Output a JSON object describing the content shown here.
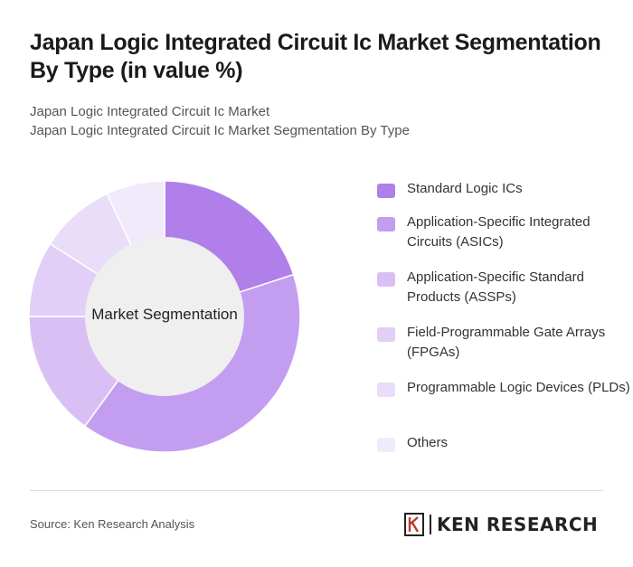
{
  "header": {
    "title": "Japan Logic Integrated Circuit Ic Market Segmentation By Type (in value %)",
    "subtitle_line1": "Japan Logic Integrated Circuit Ic Market",
    "subtitle_line2": "Japan Logic Integrated Circuit Ic Market Segmentation By Type"
  },
  "chart_data": {
    "type": "pie",
    "center_label": "Market Segmentation",
    "categories": [
      "Standard Logic ICs",
      "Application-Specific Integrated Circuits (ASICs)",
      "Application-Specific Standard Products (ASSPs)",
      "Field-Programmable Gate Arrays (FPGAs)",
      "Programmable Logic Devices (PLDs)",
      "Others"
    ],
    "values": [
      20,
      40,
      15,
      9,
      9,
      7
    ],
    "colors": [
      "#b07fe9",
      "#c39ef0",
      "#d8c0f5",
      "#e1cff7",
      "#e9ddf9",
      "#f1eafb"
    ],
    "legend_position": "right"
  },
  "footer": {
    "source": "Source: Ken Research Analysis",
    "logo_text": "KEN RESEARCH"
  }
}
